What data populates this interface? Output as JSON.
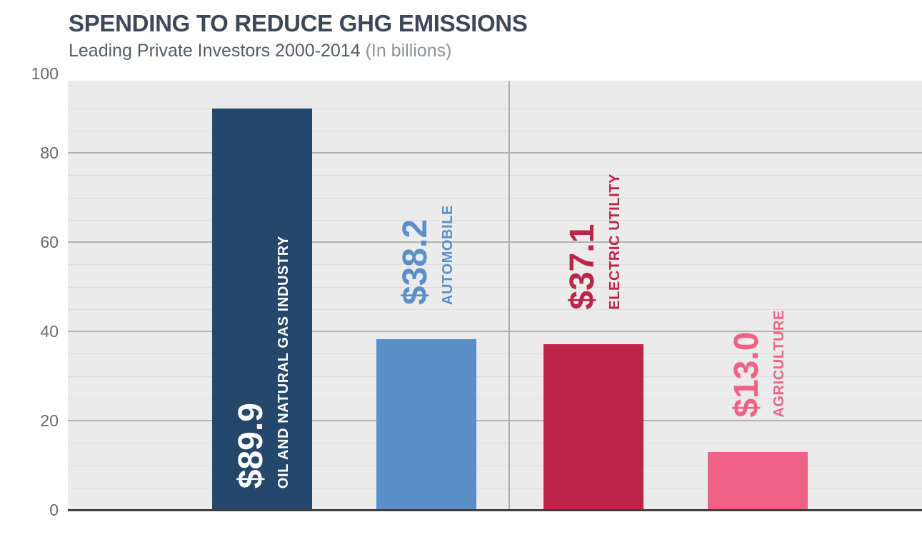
{
  "header": {
    "title": "SPENDING TO REDUCE GHG EMISSIONS",
    "subtitle": "Leading Private Investors 2000-2014",
    "subtitle_note": "(In billions)"
  },
  "chart_data": {
    "type": "bar",
    "title": "SPENDING TO REDUCE GHG EMISSIONS",
    "subtitle": "Leading Private Investors 2000-2014 (In billions)",
    "categories": [
      "OIL AND NATURAL GAS INDUSTRY",
      "AUTOMOBILE",
      "ELECTRIC UTILITY",
      "AGRICULTURE"
    ],
    "values": [
      89.9,
      38.2,
      37.1,
      13.0
    ],
    "value_labels": [
      "$89.9",
      "$38.2",
      "$37.1",
      "$13.0"
    ],
    "bar_colors": [
      "#25476b",
      "#5a8fc8",
      "#bd2449",
      "#ef6287"
    ],
    "label_text_colors": [
      "#ffffff",
      "#5a8fc8",
      "#bd2449",
      "#ef6287"
    ],
    "value_label_inside": [
      true,
      false,
      false,
      false
    ],
    "xlabel": "",
    "ylabel": "",
    "ylim": [
      0,
      100
    ],
    "yticks": [
      0,
      20,
      40,
      60,
      80,
      100
    ],
    "minor_tick_step": 5,
    "grid": "horizontal, major and minor",
    "legend_position": "none"
  },
  "colors": {
    "title": "#3c4858",
    "subtitle": "#525d6b",
    "subtitle_note": "#8e939b",
    "plot_background": "#ebebeb",
    "grid_minor": "#dcdcdc",
    "grid_major": "#b2b2b2",
    "axis_line": "#3f3f3f",
    "axis_labels": "#666a6f",
    "divider_line": "#aeaeae",
    "page_background": "#ffffff"
  }
}
